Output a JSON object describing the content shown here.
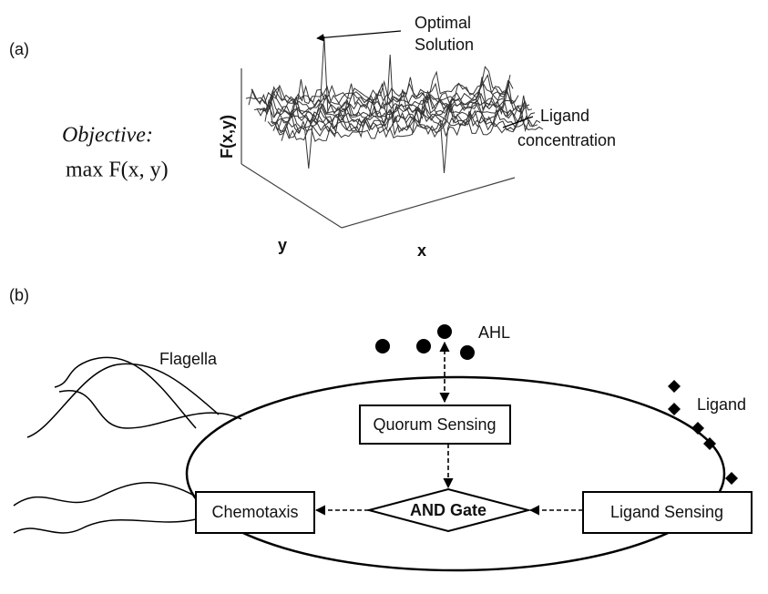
{
  "panel_a": {
    "label": "(a)",
    "objective": "Objective:",
    "formula": "max F(x, y)",
    "z_axis": "F(x,y)",
    "y_axis": "y",
    "x_axis": "x",
    "peak_label": [
      "Optimal",
      "Solution"
    ],
    "surface_label": [
      "Ligand",
      "concentration"
    ]
  },
  "panel_b": {
    "label": "(b)",
    "signal": "AHL",
    "flagella": "Flagella",
    "ligand": "Ligand",
    "quorum": "Quorum Sensing",
    "chemotaxis": "Chemotaxis",
    "gate": "AND Gate",
    "ligand_sensing": "Ligand Sensing"
  }
}
